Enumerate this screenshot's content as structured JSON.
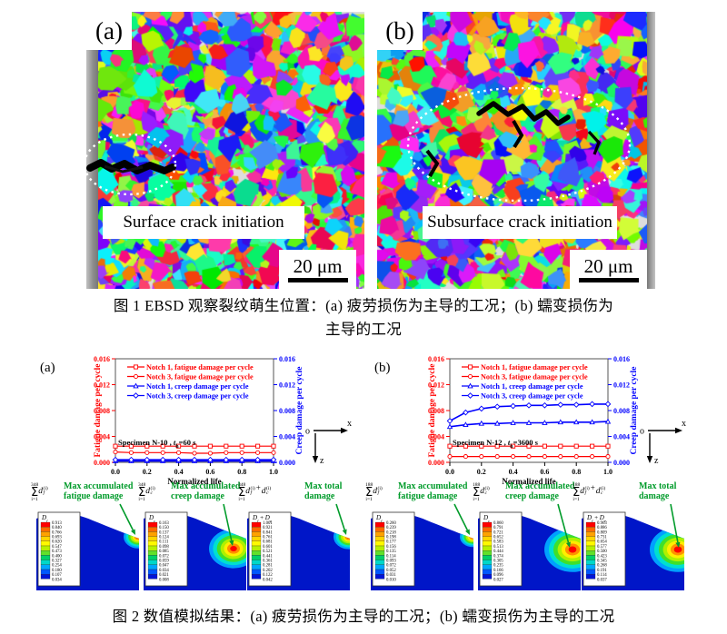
{
  "colors": {
    "accent_red": "#ff0000",
    "accent_blue": "#0000ff",
    "accent_green": "#009b2a",
    "contour_blue": "#0016c8"
  },
  "figure1": {
    "panel_a": {
      "tag": "(a)",
      "label": "Surface crack initiation",
      "scale_bar": "20 μm"
    },
    "panel_b": {
      "tag": "(b)",
      "label": "Subsurface crack initiation",
      "scale_bar": "20 μm"
    },
    "caption_line1": "图 1  EBSD 观察裂纹萌生位置：(a) 疲劳损伤为主导的工况；(b) 蠕变损伤为",
    "caption_line2": "主导的工况"
  },
  "figure2": {
    "caption": "图 2  数值模拟结果：(a) 疲劳损伤为主导的工况；(b) 蠕变损伤为主导的工况",
    "colormap_12": [
      "#ff0000",
      "#ff6a00",
      "#ffa200",
      "#ffd500",
      "#fff900",
      "#b8f000",
      "#62e02a",
      "#00d06a",
      "#00d8c8",
      "#00a8ff",
      "#0058ff",
      "#0014d8"
    ],
    "hotspot_bands": [
      "#00a0ff",
      "#00e0d0",
      "#40e02a",
      "#b0f000",
      "#ffee00",
      "#ff9000",
      "#ff0000"
    ],
    "coord_icon": {
      "origin": "o",
      "x_label": "x",
      "z_label": "z"
    },
    "halves": [
      {
        "letter": "(a)",
        "sum_top": "348",
        "sum_bottom": "i=1",
        "contours": [
          {
            "terms": [
              {
                "t": "d",
                "sub": "f",
                "sup": "(i)"
              }
            ],
            "label_lines": [
              "Max accumulated",
              "fatigue damage"
            ],
            "legend_title": [
              {
                "t": "D",
                "sub": "f"
              }
            ],
            "legend_values": [
              "0.913",
              "0.840",
              "0.766",
              "0.693",
              "0.620",
              "0.547",
              "0.473",
              "0.400",
              "0.327",
              "0.254",
              "0.180",
              "0.107",
              "0.034"
            ]
          },
          {
            "terms": [
              {
                "t": "d",
                "sub": "c",
                "sup": "(i)"
              }
            ],
            "label_lines": [
              "Max accumulated",
              "creep damage"
            ],
            "legend_title": [
              {
                "t": "D",
                "sub": "c"
              }
            ],
            "legend_values": [
              "0.163",
              "0.150",
              "0.137",
              "0.124",
              "0.111",
              "0.098",
              "0.085",
              "0.072",
              "0.059",
              "0.047",
              "0.034",
              "0.021",
              "0.008"
            ]
          },
          {
            "terms": [
              {
                "t": "d",
                "sub": "f",
                "sup": "(i)"
              },
              {
                "t": "+"
              },
              {
                "t": "d",
                "sub": "c",
                "sup": "(i)"
              }
            ],
            "label_lines": [
              "Max total",
              "damage"
            ],
            "legend_title": [
              {
                "t": "D",
                "sub": "f"
              },
              {
                "t": "+"
              },
              {
                "t": "D",
                "sub": "c"
              }
            ],
            "legend_values": [
              "1.001",
              "0.921",
              "0.841",
              "0.761",
              "0.681",
              "0.601",
              "0.521",
              "0.441",
              "0.361",
              "0.281",
              "0.202",
              "0.122",
              "0.042"
            ]
          }
        ]
      },
      {
        "letter": "(b)",
        "sum_top": "188",
        "sum_bottom": "i=1",
        "contours": [
          {
            "terms": [
              {
                "t": "d",
                "sub": "f",
                "sup": "(i)"
              }
            ],
            "label_lines": [
              "Max accumulated",
              "fatigue damage"
            ],
            "legend_title": [
              {
                "t": "D",
                "sub": "f"
              }
            ],
            "legend_values": [
              "0.260",
              "0.239",
              "0.218",
              "0.198",
              "0.177",
              "0.156",
              "0.135",
              "0.114",
              "0.093",
              "0.072",
              "0.052",
              "0.031",
              "0.010"
            ]
          },
          {
            "terms": [
              {
                "t": "d",
                "sub": "c",
                "sup": "(i)"
              }
            ],
            "label_lines": [
              "Max accumulated",
              "creep damage"
            ],
            "legend_title": [
              {
                "t": "D",
                "sub": "c"
              }
            ],
            "legend_values": [
              "0.860",
              "0.791",
              "0.721",
              "0.652",
              "0.583",
              "0.513",
              "0.444",
              "0.374",
              "0.305",
              "0.235",
              "0.166",
              "0.096",
              "0.027"
            ]
          },
          {
            "terms": [
              {
                "t": "d",
                "sub": "f",
                "sup": "(i)"
              },
              {
                "t": "+"
              },
              {
                "t": "d",
                "sub": "c",
                "sup": "(i)"
              }
            ],
            "label_lines": [
              "Max total",
              "damage"
            ],
            "legend_title": [
              {
                "t": "D",
                "sub": "f"
              },
              {
                "t": "+"
              },
              {
                "t": "D",
                "sub": "c"
              }
            ],
            "legend_values": [
              "0.963",
              "0.886",
              "0.809",
              "0.731",
              "0.654",
              "0.577",
              "0.500",
              "0.423",
              "0.345",
              "0.268",
              "0.191",
              "0.114",
              "0.037"
            ]
          }
        ]
      }
    ]
  },
  "chart_data": [
    {
      "type": "line",
      "panel": "(a)",
      "xlabel": "Normalized life",
      "ylabel_left": "Fatigue damage per cycle",
      "ylabel_right": "Creep damage per cycle",
      "left_color": "#ff0000",
      "right_color": "#0000ff",
      "xlim": [
        0,
        1
      ],
      "ylim": [
        0,
        0.016
      ],
      "xticks": [
        0.0,
        0.2,
        0.4,
        0.6,
        0.8,
        1.0
      ],
      "yticks": [
        0.0,
        0.004,
        0.008,
        0.012,
        0.016
      ],
      "note": {
        "prefix": "Specimen N-10 , ",
        "var": "t",
        "var_sub": "h",
        "suffix": "=60 s"
      },
      "x": [
        0,
        0.1,
        0.2,
        0.3,
        0.4,
        0.5,
        0.6,
        0.7,
        0.8,
        0.9,
        1.0
      ],
      "series": [
        {
          "name": "Notch 1, fatigue damage per cycle",
          "color": "#ff0000",
          "marker": "square",
          "axis": "left",
          "values": [
            0.0025,
            0.0025,
            0.0025,
            0.0025,
            0.0025,
            0.0025,
            0.0025,
            0.0025,
            0.0025,
            0.0025,
            0.0025
          ]
        },
        {
          "name": "Notch 3, fatigue damage per cycle",
          "color": "#ff0000",
          "marker": "circle",
          "axis": "left",
          "values": [
            0.0016,
            0.0015,
            0.0015,
            0.0015,
            0.0015,
            0.0014,
            0.0014,
            0.0015,
            0.0015,
            0.0015,
            0.0015
          ]
        },
        {
          "name": "Notch 1, creep damage per cycle",
          "color": "#0000ff",
          "marker": "triangle",
          "axis": "right",
          "values": [
            0.0002,
            0.0002,
            0.0002,
            0.0002,
            0.0002,
            0.0002,
            0.0002,
            0.0002,
            0.0002,
            0.0002,
            0.0002
          ]
        },
        {
          "name": "Notch 3, creep damage per cycle",
          "color": "#0000ff",
          "marker": "diamond",
          "axis": "right",
          "values": [
            0.0004,
            0.0004,
            0.0004,
            0.0004,
            0.0004,
            0.0004,
            0.0004,
            0.0004,
            0.0004,
            0.0004,
            0.0004
          ]
        }
      ]
    },
    {
      "type": "line",
      "panel": "(b)",
      "xlabel": "Normalized life",
      "ylabel_left": "Fatigue damage per cycle",
      "ylabel_right": "Creep damage per cycle",
      "left_color": "#ff0000",
      "right_color": "#0000ff",
      "xlim": [
        0,
        1
      ],
      "ylim": [
        0,
        0.016
      ],
      "xticks": [
        0.0,
        0.2,
        0.4,
        0.6,
        0.8,
        1.0
      ],
      "yticks": [
        0.0,
        0.004,
        0.008,
        0.012,
        0.016
      ],
      "note": {
        "prefix": "Specimen N-12 , ",
        "var": "t",
        "var_sub": "h",
        "suffix": "=3600 s"
      },
      "x": [
        0,
        0.1,
        0.2,
        0.3,
        0.4,
        0.5,
        0.6,
        0.7,
        0.8,
        0.9,
        1.0
      ],
      "series": [
        {
          "name": "Notch 1, fatigue damage per cycle",
          "color": "#ff0000",
          "marker": "square",
          "axis": "left",
          "values": [
            0.0025,
            0.0025,
            0.0025,
            0.0025,
            0.0025,
            0.0025,
            0.0025,
            0.0025,
            0.0025,
            0.0025,
            0.0025
          ]
        },
        {
          "name": "Notch 3, fatigue damage per cycle",
          "color": "#ff0000",
          "marker": "circle",
          "axis": "left",
          "values": [
            0.0009,
            0.0009,
            0.0009,
            0.0009,
            0.0009,
            0.0009,
            0.0009,
            0.0009,
            0.0009,
            0.0009,
            0.0009
          ]
        },
        {
          "name": "Notch 1, creep damage per cycle",
          "color": "#0000ff",
          "marker": "triangle",
          "axis": "right",
          "values": [
            0.0055,
            0.0058,
            0.006,
            0.006,
            0.0061,
            0.0061,
            0.0061,
            0.0062,
            0.0062,
            0.0062,
            0.0063
          ]
        },
        {
          "name": "Notch 3, creep damage per cycle",
          "color": "#0000ff",
          "marker": "diamond",
          "axis": "right",
          "values": [
            0.0064,
            0.0077,
            0.0083,
            0.0086,
            0.0087,
            0.0088,
            0.0088,
            0.0089,
            0.0089,
            0.009,
            0.009
          ]
        }
      ]
    }
  ]
}
